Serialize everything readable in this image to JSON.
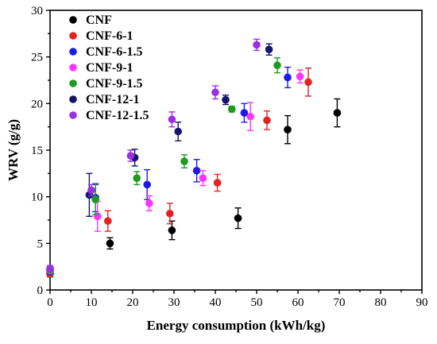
{
  "chart_data": {
    "type": "scatter",
    "xlabel": "Energy consumption (kWh/kg)",
    "ylabel": "WRV (g/g)",
    "xlim": [
      0,
      90
    ],
    "ylim": [
      0,
      30
    ],
    "xticks": [
      0,
      10,
      20,
      30,
      40,
      50,
      60,
      70,
      80,
      90
    ],
    "yticks": [
      0,
      5,
      10,
      15,
      20,
      25,
      30
    ],
    "grid": false,
    "legend_position": "top-left",
    "series": [
      {
        "name": "CNF",
        "color": "#000000",
        "points": [
          {
            "x": 0,
            "y": 1.8,
            "err": 0.3
          },
          {
            "x": 14.5,
            "y": 5.0,
            "err": 0.6
          },
          {
            "x": 29.5,
            "y": 6.4,
            "err": 1.0
          },
          {
            "x": 45.5,
            "y": 7.7,
            "err": 1.1
          },
          {
            "x": 57.5,
            "y": 17.2,
            "err": 1.5
          },
          {
            "x": 69.5,
            "y": 19.0,
            "err": 1.5
          }
        ]
      },
      {
        "name": "CNF-6-1",
        "color": "#e52222",
        "points": [
          {
            "x": 0,
            "y": 1.7,
            "err": 0.3
          },
          {
            "x": 14.0,
            "y": 7.4,
            "err": 1.1
          },
          {
            "x": 29.0,
            "y": 8.2,
            "err": 1.1
          },
          {
            "x": 40.5,
            "y": 11.5,
            "err": 0.9
          },
          {
            "x": 52.5,
            "y": 18.2,
            "err": 1.0
          },
          {
            "x": 62.5,
            "y": 22.3,
            "err": 1.5
          }
        ]
      },
      {
        "name": "CNF-6-1.5",
        "color": "#1a1aee",
        "points": [
          {
            "x": 0,
            "y": 2.0,
            "err": 0.3
          },
          {
            "x": 11.0,
            "y": 9.9,
            "err": 1.5
          },
          {
            "x": 23.5,
            "y": 11.3,
            "err": 1.6
          },
          {
            "x": 35.5,
            "y": 12.8,
            "err": 1.2
          },
          {
            "x": 47.0,
            "y": 19.0,
            "err": 1.0
          },
          {
            "x": 57.5,
            "y": 22.8,
            "err": 1.1
          }
        ]
      },
      {
        "name": "CNF-9-1",
        "color": "#ff33ff",
        "points": [
          {
            "x": 0,
            "y": 2.1,
            "err": 0.3
          },
          {
            "x": 11.5,
            "y": 7.9,
            "err": 1.6
          },
          {
            "x": 24.0,
            "y": 9.3,
            "err": 0.8
          },
          {
            "x": 37.0,
            "y": 12.0,
            "err": 0.8
          },
          {
            "x": 48.5,
            "y": 18.6,
            "err": 1.5
          },
          {
            "x": 60.5,
            "y": 22.9,
            "err": 0.7
          }
        ]
      },
      {
        "name": "CNF-9-1.5",
        "color": "#1f9a1f",
        "points": [
          {
            "x": 0,
            "y": 2.2,
            "err": 0.3
          },
          {
            "x": 11.0,
            "y": 9.7,
            "err": 1.6
          },
          {
            "x": 21.0,
            "y": 12.0,
            "err": 0.7
          },
          {
            "x": 32.5,
            "y": 13.8,
            "err": 0.7
          },
          {
            "x": 44.0,
            "y": 19.4,
            "err": 0.3
          },
          {
            "x": 55.0,
            "y": 24.1,
            "err": 0.8
          }
        ]
      },
      {
        "name": "CNF-12-1",
        "color": "#14146e",
        "points": [
          {
            "x": 0,
            "y": 2.3,
            "err": 0.3
          },
          {
            "x": 9.5,
            "y": 10.2,
            "err": 2.3
          },
          {
            "x": 20.5,
            "y": 14.2,
            "err": 0.9
          },
          {
            "x": 31.0,
            "y": 17.0,
            "err": 1.0
          },
          {
            "x": 42.5,
            "y": 20.4,
            "err": 0.5
          },
          {
            "x": 53.0,
            "y": 25.8,
            "err": 0.6
          }
        ]
      },
      {
        "name": "CNF-12-1.5",
        "color": "#9b30e0",
        "points": [
          {
            "x": 0,
            "y": 2.3,
            "err": 0.3
          },
          {
            "x": 10.0,
            "y": 10.7,
            "err": 0.6
          },
          {
            "x": 19.5,
            "y": 14.4,
            "err": 0.6
          },
          {
            "x": 29.5,
            "y": 18.3,
            "err": 0.8
          },
          {
            "x": 40.0,
            "y": 21.2,
            "err": 0.7
          },
          {
            "x": 50.0,
            "y": 26.3,
            "err": 0.6
          }
        ]
      }
    ]
  }
}
